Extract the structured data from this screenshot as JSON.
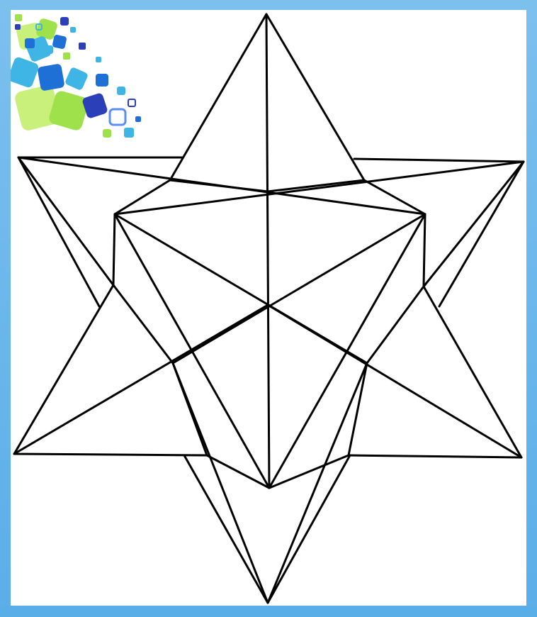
{
  "diagram": {
    "subject": "stellated-polyhedron-line-drawing",
    "stroke_color": "#000000",
    "background_color": "#ffffff"
  },
  "frame": {
    "border_color": "#6bb7ec",
    "decoration_colors": [
      "#9ee14a",
      "#3fb5e6",
      "#1e6fd6",
      "#2a3fb8",
      "#c9f07a"
    ]
  }
}
